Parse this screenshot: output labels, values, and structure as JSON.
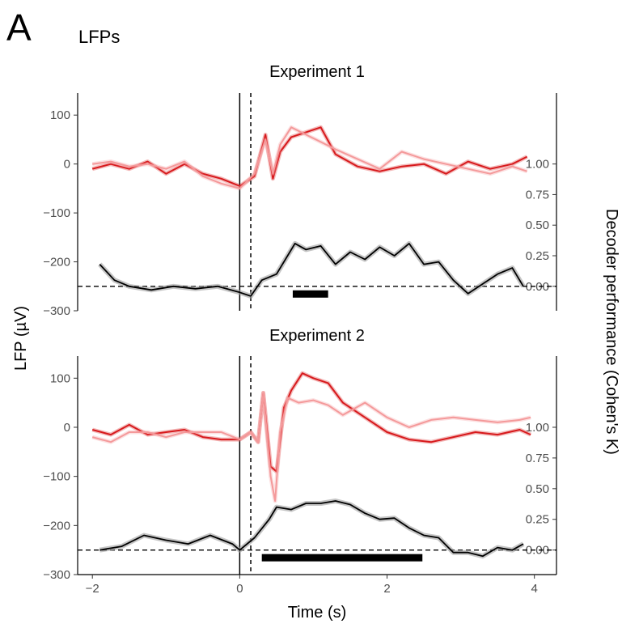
{
  "figure": {
    "panel_letter": "A",
    "heading": "LFPs",
    "ylabel_left": "LFP (µV)",
    "ylabel_right": "Decoder performance (Cohen's K)",
    "xlabel": "Time (s)"
  },
  "colors": {
    "series_dark": "#d7191c",
    "series_light": "#f4999a",
    "decoder": "#000000",
    "decoder_band": "#9e9e9e"
  },
  "chart_data": [
    {
      "type": "line",
      "title": "Experiment 1",
      "xlim": [
        -2.2,
        4.3
      ],
      "ylim_left": [
        -300,
        145
      ],
      "yticks_left": [
        100,
        0,
        -100,
        -200,
        -300
      ],
      "yticks_right": [
        "1.00",
        "0.75",
        "0.50",
        "0.25",
        "0.00"
      ],
      "xticks": [
        -2,
        0,
        2,
        4
      ],
      "vlines": [
        {
          "x": 0,
          "style": "solid"
        },
        {
          "x": 0.15,
          "style": "dashed"
        }
      ],
      "decoder_zero_at_lfp": -250,
      "decoder_scale": 250,
      "significance_bar": [
        0.72,
        1.2
      ],
      "series": [
        {
          "role": "lfp_dark",
          "x": [
            -2,
            -1.75,
            -1.5,
            -1.25,
            -1,
            -0.75,
            -0.5,
            -0.25,
            0,
            0.2,
            0.35,
            0.45,
            0.55,
            0.7,
            0.9,
            1.1,
            1.3,
            1.6,
            1.9,
            2.2,
            2.5,
            2.8,
            3.1,
            3.4,
            3.7,
            3.9
          ],
          "y": [
            -10,
            0,
            -10,
            5,
            -20,
            0,
            -20,
            -30,
            -45,
            -25,
            60,
            -30,
            25,
            55,
            65,
            75,
            20,
            -5,
            -15,
            -5,
            0,
            -20,
            5,
            -10,
            0,
            15
          ]
        },
        {
          "role": "lfp_light",
          "x": [
            -2,
            -1.75,
            -1.5,
            -1.25,
            -1,
            -0.75,
            -0.5,
            -0.25,
            0,
            0.2,
            0.35,
            0.45,
            0.55,
            0.7,
            0.9,
            1.1,
            1.3,
            1.6,
            1.9,
            2.2,
            2.5,
            2.8,
            3.1,
            3.4,
            3.7,
            3.9
          ],
          "y": [
            0,
            5,
            -5,
            0,
            -10,
            5,
            -25,
            -40,
            -50,
            -20,
            50,
            -20,
            40,
            75,
            60,
            45,
            30,
            10,
            -10,
            25,
            10,
            0,
            -10,
            -20,
            -5,
            -15
          ]
        },
        {
          "role": "decoder",
          "x": [
            -1.9,
            -1.7,
            -1.5,
            -1.2,
            -0.9,
            -0.6,
            -0.3,
            0,
            0.15,
            0.3,
            0.5,
            0.75,
            0.9,
            1.1,
            1.3,
            1.5,
            1.7,
            1.9,
            2.1,
            2.3,
            2.5,
            2.7,
            2.9,
            3.1,
            3.3,
            3.5,
            3.7,
            3.85
          ],
          "y": [
            0.18,
            0.05,
            0,
            -0.03,
            0,
            -0.02,
            0,
            -0.05,
            -0.08,
            0.05,
            0.1,
            0.35,
            0.3,
            0.33,
            0.18,
            0.28,
            0.22,
            0.32,
            0.25,
            0.35,
            0.18,
            0.2,
            0.05,
            -0.06,
            0.02,
            0.1,
            0.15,
            0.0
          ]
        }
      ]
    },
    {
      "type": "line",
      "title": "Experiment 2",
      "xlim": [
        -2.2,
        4.3
      ],
      "ylim_left": [
        -300,
        145
      ],
      "yticks_left": [
        100,
        0,
        -100,
        -200,
        -300
      ],
      "yticks_right": [
        "1.00",
        "0.75",
        "0.50",
        "0.25",
        "0.00"
      ],
      "xticks": [
        -2,
        0,
        2,
        4
      ],
      "vlines": [
        {
          "x": 0,
          "style": "solid"
        },
        {
          "x": 0.15,
          "style": "dashed"
        }
      ],
      "decoder_zero_at_lfp": -250,
      "decoder_scale": 250,
      "significance_bar": [
        0.3,
        2.48
      ],
      "series": [
        {
          "role": "lfp_dark",
          "x": [
            -2,
            -1.75,
            -1.5,
            -1.25,
            -1,
            -0.75,
            -0.5,
            -0.25,
            0,
            0.15,
            0.25,
            0.32,
            0.42,
            0.5,
            0.6,
            0.7,
            0.85,
            1.0,
            1.2,
            1.4,
            1.7,
            2.0,
            2.3,
            2.6,
            2.9,
            3.2,
            3.5,
            3.8,
            3.95
          ],
          "y": [
            -5,
            -15,
            5,
            -15,
            -10,
            -5,
            -20,
            -25,
            -25,
            -10,
            -30,
            70,
            -80,
            -90,
            40,
            75,
            110,
            100,
            90,
            50,
            20,
            -10,
            -25,
            -30,
            -20,
            -10,
            -15,
            -5,
            -15
          ]
        },
        {
          "role": "lfp_light",
          "x": [
            -2,
            -1.75,
            -1.5,
            -1.25,
            -1,
            -0.75,
            -0.5,
            -0.25,
            0,
            0.15,
            0.25,
            0.32,
            0.42,
            0.48,
            0.55,
            0.65,
            0.8,
            1.0,
            1.2,
            1.4,
            1.7,
            2.0,
            2.3,
            2.6,
            2.9,
            3.2,
            3.5,
            3.8,
            3.95
          ],
          "y": [
            -20,
            -30,
            -10,
            -10,
            -20,
            -10,
            -10,
            -10,
            -25,
            -10,
            -30,
            70,
            -100,
            -150,
            -10,
            60,
            50,
            55,
            45,
            25,
            50,
            20,
            0,
            15,
            20,
            15,
            10,
            15,
            20
          ]
        },
        {
          "role": "decoder",
          "x": [
            -1.9,
            -1.6,
            -1.3,
            -1,
            -0.7,
            -0.4,
            -0.1,
            0,
            0.2,
            0.4,
            0.5,
            0.7,
            0.9,
            1.1,
            1.3,
            1.5,
            1.7,
            1.9,
            2.1,
            2.3,
            2.5,
            2.7,
            2.9,
            3.1,
            3.3,
            3.5,
            3.7,
            3.85
          ],
          "y": [
            0,
            0.03,
            0.12,
            0.08,
            0.05,
            0.12,
            0.05,
            0.0,
            0.1,
            0.25,
            0.35,
            0.33,
            0.38,
            0.38,
            0.4,
            0.37,
            0.3,
            0.25,
            0.26,
            0.18,
            0.12,
            0.1,
            -0.02,
            -0.02,
            -0.05,
            0.02,
            0.0,
            0.05
          ]
        }
      ]
    }
  ]
}
